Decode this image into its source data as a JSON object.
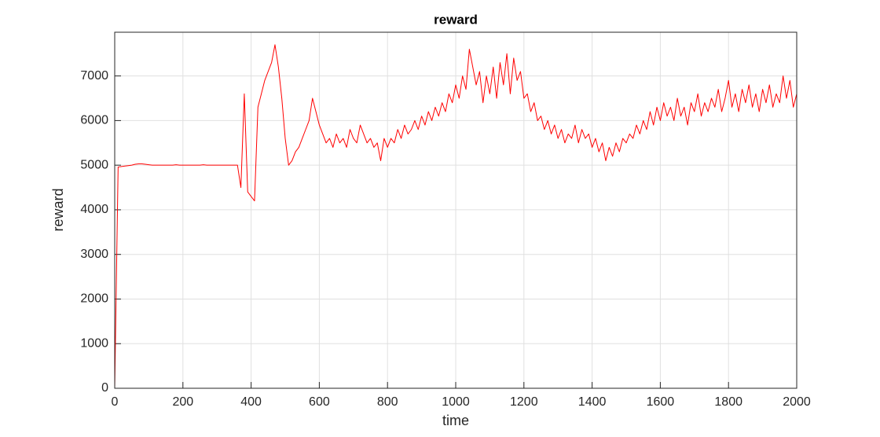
{
  "chart_data": {
    "type": "line",
    "title": "reward",
    "x_label": "time",
    "y_label": "reward",
    "x": [
      0,
      10,
      20,
      30,
      40,
      50,
      60,
      70,
      80,
      90,
      100,
      110,
      120,
      130,
      140,
      150,
      160,
      170,
      180,
      190,
      200,
      210,
      220,
      230,
      240,
      250,
      260,
      270,
      280,
      290,
      300,
      310,
      320,
      330,
      340,
      350,
      360,
      370,
      380,
      390,
      400,
      410,
      420,
      430,
      440,
      450,
      460,
      470,
      480,
      490,
      500,
      510,
      520,
      530,
      540,
      550,
      560,
      570,
      580,
      590,
      600,
      610,
      620,
      630,
      640,
      650,
      660,
      670,
      680,
      690,
      700,
      710,
      720,
      730,
      740,
      750,
      760,
      770,
      780,
      790,
      800,
      810,
      820,
      830,
      840,
      850,
      860,
      870,
      880,
      890,
      900,
      910,
      920,
      930,
      940,
      950,
      960,
      970,
      980,
      990,
      1000,
      1010,
      1020,
      1030,
      1040,
      1050,
      1060,
      1070,
      1080,
      1090,
      1100,
      1110,
      1120,
      1130,
      1140,
      1150,
      1160,
      1170,
      1180,
      1190,
      1200,
      1210,
      1220,
      1230,
      1240,
      1250,
      1260,
      1270,
      1280,
      1290,
      1300,
      1310,
      1320,
      1330,
      1340,
      1350,
      1360,
      1370,
      1380,
      1390,
      1400,
      1410,
      1420,
      1430,
      1440,
      1450,
      1460,
      1470,
      1480,
      1490,
      1500,
      1510,
      1520,
      1530,
      1540,
      1550,
      1560,
      1570,
      1580,
      1590,
      1600,
      1610,
      1620,
      1630,
      1640,
      1650,
      1660,
      1670,
      1680,
      1690,
      1700,
      1710,
      1720,
      1730,
      1740,
      1750,
      1760,
      1770,
      1780,
      1790,
      1800,
      1810,
      1820,
      1830,
      1840,
      1850,
      1860,
      1870,
      1880,
      1890,
      1900,
      1910,
      1920,
      1930,
      1940,
      1950,
      1960,
      1970,
      1980,
      1990,
      2000
    ],
    "series": [
      {
        "name": "reward",
        "color": "#ff0000",
        "values": [
          0,
          4960,
          4970,
          4980,
          4990,
          5000,
          5020,
          5030,
          5030,
          5020,
          5010,
          5000,
          5000,
          5000,
          5000,
          5000,
          5000,
          5000,
          5010,
          5000,
          5000,
          5000,
          5000,
          5000,
          5000,
          5000,
          5010,
          5000,
          5000,
          5000,
          5000,
          5000,
          5000,
          5000,
          5000,
          5000,
          5000,
          4500,
          6600,
          4400,
          4300,
          4200,
          6300,
          6600,
          6900,
          7100,
          7300,
          7700,
          7200,
          6500,
          5600,
          5000,
          5100,
          5300,
          5400,
          5600,
          5800,
          6000,
          6500,
          6200,
          5900,
          5700,
          5500,
          5600,
          5400,
          5700,
          5500,
          5600,
          5400,
          5800,
          5600,
          5500,
          5900,
          5700,
          5500,
          5600,
          5400,
          5500,
          5100,
          5600,
          5400,
          5600,
          5500,
          5800,
          5600,
          5900,
          5700,
          5800,
          6000,
          5800,
          6100,
          5900,
          6200,
          6000,
          6300,
          6100,
          6400,
          6200,
          6600,
          6400,
          6800,
          6500,
          7000,
          6700,
          7600,
          7200,
          6800,
          7100,
          6400,
          7000,
          6600,
          7200,
          6500,
          7300,
          6800,
          7500,
          6600,
          7400,
          6900,
          7100,
          6500,
          6600,
          6200,
          6400,
          6000,
          6100,
          5800,
          6000,
          5700,
          5900,
          5600,
          5800,
          5500,
          5700,
          5600,
          5900,
          5500,
          5800,
          5600,
          5700,
          5400,
          5600,
          5300,
          5500,
          5100,
          5400,
          5200,
          5500,
          5300,
          5600,
          5500,
          5700,
          5600,
          5900,
          5700,
          6000,
          5800,
          6200,
          5900,
          6300,
          6000,
          6400,
          6100,
          6300,
          6000,
          6500,
          6100,
          6300,
          5900,
          6400,
          6200,
          6600,
          6100,
          6400,
          6200,
          6500,
          6300,
          6700,
          6200,
          6500,
          6900,
          6300,
          6600,
          6200,
          6700,
          6400,
          6800,
          6300,
          6600,
          6200,
          6700,
          6400,
          6800,
          6300,
          6600,
          6400,
          7000,
          6500,
          6900,
          6300,
          6600
        ]
      }
    ],
    "xlim": [
      0,
      2000
    ],
    "ylim": [
      0,
      7980
    ],
    "xticks": [
      0,
      200,
      400,
      600,
      800,
      1000,
      1200,
      1400,
      1600,
      1800,
      2000
    ],
    "yticks": [
      0,
      1000,
      2000,
      3000,
      4000,
      5000,
      6000,
      7000
    ],
    "grid": true
  }
}
